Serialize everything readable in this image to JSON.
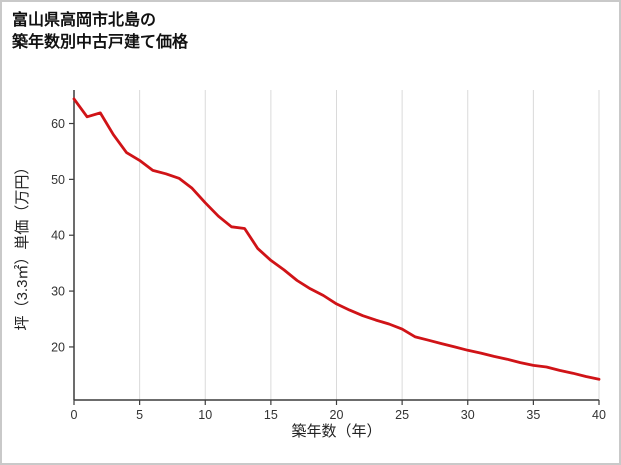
{
  "header": {
    "title_line1": "富山県高岡市北島の",
    "title_line2": "築年数別中古戸建て価格"
  },
  "chart_data": {
    "type": "line",
    "title": "富山県高岡市北島の築年数別中古戸建て価格",
    "xlabel": "築年数（年）",
    "ylabel": "坪（3.3㎡）単価（万円）",
    "x": [
      0,
      1,
      2,
      3,
      4,
      5,
      6,
      7,
      8,
      9,
      10,
      11,
      12,
      13,
      14,
      15,
      16,
      17,
      18,
      19,
      20,
      21,
      22,
      23,
      24,
      25,
      26,
      27,
      28,
      29,
      30,
      31,
      32,
      33,
      34,
      35,
      36,
      37,
      38,
      39,
      40
    ],
    "values": [
      64.4,
      61.2,
      61.9,
      58.0,
      54.8,
      53.4,
      51.6,
      51.0,
      50.2,
      48.4,
      45.8,
      43.4,
      41.5,
      41.2,
      37.6,
      35.5,
      33.8,
      31.9,
      30.4,
      29.2,
      27.7,
      26.6,
      25.6,
      24.8,
      24.1,
      23.2,
      21.8,
      21.2,
      20.6,
      20.0,
      19.4,
      18.9,
      18.3,
      17.8,
      17.2,
      16.7,
      16.4,
      15.8,
      15.3,
      14.7,
      14.2
    ],
    "xlim": [
      0,
      40
    ],
    "ylim": [
      10.5,
      66
    ],
    "x_ticks": [
      0,
      5,
      10,
      15,
      20,
      25,
      30,
      35,
      40
    ],
    "y_ticks": [
      20,
      30,
      40,
      50,
      60
    ],
    "grid": "vertical-only",
    "legend": "none",
    "line_color": "#d01317",
    "axis_color": "#3c3c3c",
    "grid_color": "#dadada"
  }
}
